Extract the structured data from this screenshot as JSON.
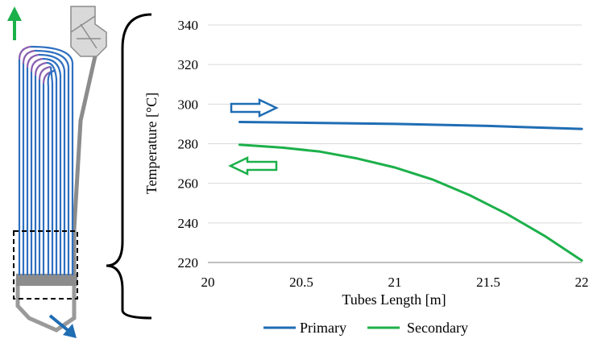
{
  "chart_data": {
    "type": "line",
    "title": "",
    "xlabel": "Tubes Length [m]",
    "ylabel": "Temperature [°C]",
    "xlim": [
      20,
      22
    ],
    "ylim": [
      220,
      340
    ],
    "x_ticks": [
      "20",
      "20.5",
      "21",
      "21.5",
      "22"
    ],
    "y_ticks": [
      "220",
      "240",
      "260",
      "280",
      "300",
      "320",
      "340"
    ],
    "grid": "horizontal",
    "legend_position": "bottom",
    "series": [
      {
        "name": "Primary",
        "color": "#1f6db4",
        "x": [
          20.17,
          20.5,
          21.0,
          21.5,
          22.0
        ],
        "y": [
          291.0,
          290.6,
          290.0,
          289.0,
          287.5
        ]
      },
      {
        "name": "Secondary",
        "color": "#1cb04a",
        "x": [
          20.17,
          20.4,
          20.6,
          20.8,
          21.0,
          21.2,
          21.4,
          21.6,
          21.8,
          22.0
        ],
        "y": [
          279.5,
          278.0,
          276.0,
          272.5,
          268.0,
          262.0,
          254.0,
          244.5,
          233.5,
          221.0
        ]
      }
    ],
    "annotations": [
      {
        "type": "arrow-right",
        "color": "#1f6db4",
        "meaning": "primary flow direction"
      },
      {
        "type": "arrow-left",
        "color": "#1cb04a",
        "meaning": "secondary flow direction"
      }
    ]
  },
  "diagram": {
    "tube_color": "#2e6fc0",
    "bend_color": "#8a5fb0",
    "structure_color": "#8c8c8c",
    "outlet_arrow_color": "#1cb04a",
    "inlet_arrow_color": "#1f6db4"
  }
}
